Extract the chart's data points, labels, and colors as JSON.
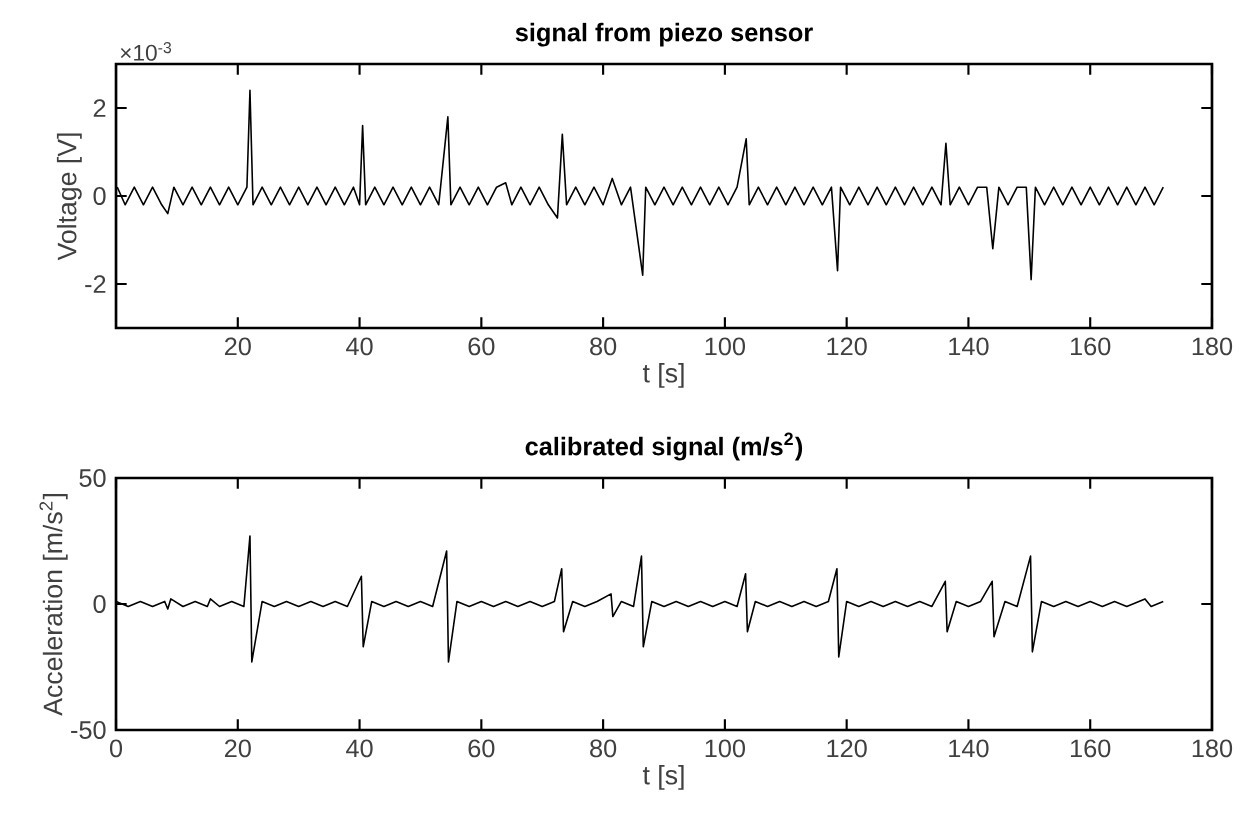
{
  "chart_data": [
    {
      "type": "line",
      "title": "signal from piezo sensor",
      "xlabel": "t [s]",
      "ylabel": "Voltage [V]",
      "annotations": [
        "×10$^{-3}$"
      ],
      "color": "#000000",
      "x": [
        0.2,
        1.5,
        3,
        4.5,
        6,
        7.5,
        8.5,
        9.5,
        11,
        12.5,
        14,
        15.5,
        17,
        18.5,
        20,
        21.5,
        22,
        22.5,
        24,
        25.5,
        27,
        28.5,
        30,
        31.5,
        33,
        34.5,
        36,
        37.5,
        39,
        40,
        40.5,
        41,
        42.5,
        44,
        45.5,
        47,
        48.5,
        50,
        51.5,
        53,
        54.5,
        55,
        56.5,
        58,
        59.5,
        61,
        62.5,
        64,
        65,
        66.5,
        68,
        69.5,
        71,
        72.5,
        73.3,
        74,
        75.5,
        77,
        78.5,
        80,
        81.5,
        83,
        84.5,
        86.5,
        87,
        88.5,
        90,
        91.5,
        93,
        94.5,
        96,
        97.5,
        99,
        100.5,
        102,
        103.5,
        104,
        105.5,
        107,
        108.5,
        110,
        111.5,
        113,
        114.5,
        116,
        117.5,
        118.5,
        119,
        120.5,
        122,
        123.5,
        125,
        126.5,
        128,
        129.5,
        131,
        132.5,
        134,
        135.5,
        136.3,
        137,
        138.5,
        140,
        141.5,
        143,
        144,
        145,
        146.5,
        148,
        149.5,
        150.3,
        151,
        152.5,
        154,
        155.5,
        157,
        158.5,
        160,
        161.5,
        163,
        164.5,
        166,
        167.5,
        169,
        170.5,
        172
      ],
      "values": [
        0.2,
        -0.2,
        0.2,
        -0.2,
        0.2,
        -0.2,
        -0.4,
        0.2,
        -0.2,
        0.2,
        -0.2,
        0.2,
        -0.2,
        0.2,
        -0.2,
        0.2,
        2.4,
        -0.2,
        0.2,
        -0.2,
        0.2,
        -0.2,
        0.2,
        -0.2,
        0.2,
        -0.2,
        0.2,
        -0.2,
        0.2,
        -0.2,
        1.6,
        -0.2,
        0.2,
        -0.2,
        0.2,
        -0.2,
        0.2,
        -0.2,
        0.2,
        -0.2,
        1.8,
        -0.2,
        0.2,
        -0.2,
        0.2,
        -0.2,
        0.2,
        0.3,
        -0.2,
        0.2,
        -0.2,
        0.2,
        -0.2,
        -0.5,
        1.4,
        -0.2,
        0.2,
        -0.2,
        0.2,
        -0.2,
        0.4,
        -0.2,
        0.2,
        -1.8,
        0.2,
        -0.2,
        0.2,
        -0.2,
        0.2,
        -0.2,
        0.2,
        -0.2,
        0.2,
        -0.2,
        0.2,
        1.3,
        -0.2,
        0.2,
        -0.2,
        0.2,
        -0.2,
        0.2,
        -0.2,
        0.2,
        -0.2,
        0.2,
        -1.7,
        0.2,
        -0.2,
        0.2,
        -0.2,
        0.2,
        -0.2,
        0.2,
        -0.2,
        0.2,
        -0.2,
        0.2,
        -0.2,
        1.2,
        -0.2,
        0.2,
        -0.2,
        0.2,
        0.2,
        -1.2,
        0.2,
        -0.2,
        0.2,
        0.2,
        -1.9,
        0.2,
        -0.2,
        0.2,
        -0.2,
        0.2,
        -0.2,
        0.2,
        -0.2,
        0.2,
        -0.2,
        0.2,
        -0.2,
        0.2,
        -0.2,
        0.2
      ],
      "xlim": [
        0,
        180
      ],
      "ylim": [
        -3,
        3
      ],
      "xticks": [
        20,
        40,
        60,
        80,
        100,
        120,
        140,
        160,
        180
      ],
      "yticks": [
        -2,
        0,
        2
      ]
    },
    {
      "type": "line",
      "title": "calibrated signal (m/s$^{2}$)",
      "xlabel": "t [s]",
      "ylabel": "Acceleration [m/s$^{2}$]",
      "color": "#000000",
      "x": [
        0,
        2,
        4,
        6,
        8,
        8.5,
        9,
        11,
        13,
        15,
        15.5,
        17,
        19,
        21,
        22,
        22.3,
        24,
        26,
        28,
        30,
        32,
        34,
        36,
        38,
        40.3,
        40.6,
        42,
        44,
        46,
        48,
        50,
        52,
        54.3,
        54.6,
        56,
        58,
        60,
        62,
        64,
        66,
        68,
        70,
        72,
        73.2,
        73.5,
        75,
        77,
        79,
        81.3,
        81.6,
        83,
        85,
        86.3,
        86.6,
        88,
        90,
        92,
        94,
        96,
        98,
        100,
        102,
        103.4,
        103.7,
        105,
        107,
        109,
        111,
        113,
        115,
        117,
        118.4,
        118.7,
        120,
        122,
        124,
        126,
        128,
        130,
        132,
        134,
        136.2,
        136.5,
        138,
        140,
        142,
        143.9,
        144.2,
        146,
        148,
        150.2,
        150.5,
        152,
        154,
        156,
        158,
        160,
        162,
        164,
        166,
        168,
        169,
        170,
        172
      ],
      "values": [
        1,
        -1,
        1,
        -1,
        1,
        -2,
        2,
        -1,
        1,
        -1,
        2,
        -1,
        1,
        -1,
        27,
        -23,
        1,
        -1,
        1,
        -1,
        1,
        -1,
        1,
        -1,
        11,
        -17,
        1,
        -1,
        1,
        -1,
        1,
        -1,
        21,
        -23,
        1,
        -1,
        1,
        -1,
        1,
        -1,
        1,
        -1,
        1,
        14,
        -11,
        1,
        -1,
        1,
        4,
        -5,
        1,
        -1,
        19,
        -17,
        1,
        -1,
        1,
        -1,
        1,
        -1,
        1,
        -1,
        12,
        -11,
        1,
        -1,
        1,
        -1,
        1,
        -1,
        1,
        14,
        -21,
        1,
        -1,
        1,
        -1,
        1,
        -1,
        1,
        -1,
        9,
        -11,
        1,
        -1,
        1,
        9,
        -13,
        1,
        -1,
        19,
        -19,
        1,
        -1,
        1,
        -1,
        1,
        -1,
        1,
        -1,
        1,
        2,
        -1,
        1
      ],
      "xlim": [
        0,
        180
      ],
      "ylim": [
        -50,
        50
      ],
      "xticks": [
        0,
        20,
        40,
        60,
        80,
        100,
        120,
        140,
        160,
        180
      ],
      "yticks": [
        -50,
        0,
        50
      ]
    }
  ]
}
